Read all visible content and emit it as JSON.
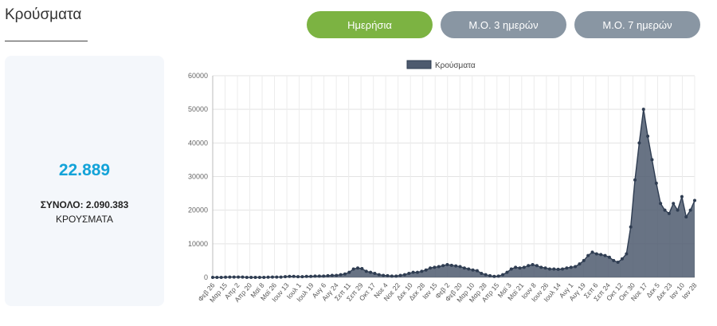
{
  "page_title": "Κρούσματα",
  "buttons": {
    "daily": "Ημερήσια",
    "ma3": "Μ.Ο. 3 ημερών",
    "ma7": "Μ.Ο. 7 ημερών"
  },
  "summary": {
    "daily_value": "22.889",
    "total_text": "ΣΥΝΟΛΟ: 2.090.383",
    "total_unit": "ΚΡΟΥΣΜΑΤΑ"
  },
  "colors": {
    "accent_green": "#7cb342",
    "button_grey": "#8996a3",
    "highlight_blue": "#13a3d8",
    "series_fill": "#4d5a6e",
    "series_line": "#2f3d52"
  },
  "chart_data": {
    "type": "area",
    "legend": "Κρούσματα",
    "legend_position": "top-center",
    "grid": true,
    "ylim": [
      0,
      60000
    ],
    "yticks": [
      0,
      10000,
      20000,
      30000,
      40000,
      50000,
      60000
    ],
    "xticks": [
      "Φεβ 26",
      "Μαρ 15",
      "Απρ 2",
      "Απρ 20",
      "Μαϊ 8",
      "Μαϊ 26",
      "Ιουν 13",
      "Ιουλ 1",
      "Ιουλ 19",
      "Αυγ 6",
      "Αυγ 24",
      "Σεπ 11",
      "Σεπ 29",
      "Οκτ 17",
      "Νοε 4",
      "Νοε 22",
      "Δεκ 10",
      "Δεκ 28",
      "Ιαν 15",
      "Φεβ 2",
      "Φεβ 20",
      "Μαρ 10",
      "Μαρ 28",
      "Απρ 15",
      "Μαϊ 3",
      "Μαϊ 21",
      "Ιουν 8",
      "Ιουν 26",
      "Ιουλ 14",
      "Αυγ 1",
      "Αυγ 19",
      "Σεπ 6",
      "Σεπ 24",
      "Οκτ 12",
      "Οκτ 30",
      "Νοε 17",
      "Δεκ 5",
      "Δεκ 23",
      "Ιαν 10",
      "Ιαν 28"
    ],
    "series": [
      {
        "name": "Κρούσματα",
        "values": [
          0,
          0,
          0,
          50,
          100,
          100,
          100,
          100,
          0,
          0,
          0,
          0,
          0,
          50,
          100,
          100,
          100,
          200,
          300,
          300,
          200,
          200,
          300,
          300,
          400,
          400,
          400,
          500,
          600,
          600,
          800,
          1000,
          1500,
          2500,
          2800,
          2600,
          1800,
          1500,
          1200,
          800,
          600,
          500,
          400,
          400,
          600,
          800,
          1200,
          1500,
          1500,
          1800,
          2200,
          2800,
          3000,
          3200,
          3500,
          3800,
          3600,
          3400,
          3200,
          2800,
          2500,
          2200,
          2000,
          1200,
          800,
          500,
          300,
          400,
          800,
          1500,
          2500,
          3000,
          2800,
          3000,
          3500,
          3800,
          3500,
          3000,
          2800,
          2500,
          2500,
          2400,
          2500,
          2800,
          3000,
          3200,
          4000,
          5000,
          6500,
          7500,
          7000,
          6800,
          6500,
          6000,
          5000,
          4500,
          5500,
          7000,
          15000,
          29000,
          40000,
          50000,
          42000,
          35000,
          28000,
          22000,
          20000,
          19000,
          22000,
          20000,
          24000,
          18000,
          20000,
          22889
        ]
      }
    ]
  }
}
